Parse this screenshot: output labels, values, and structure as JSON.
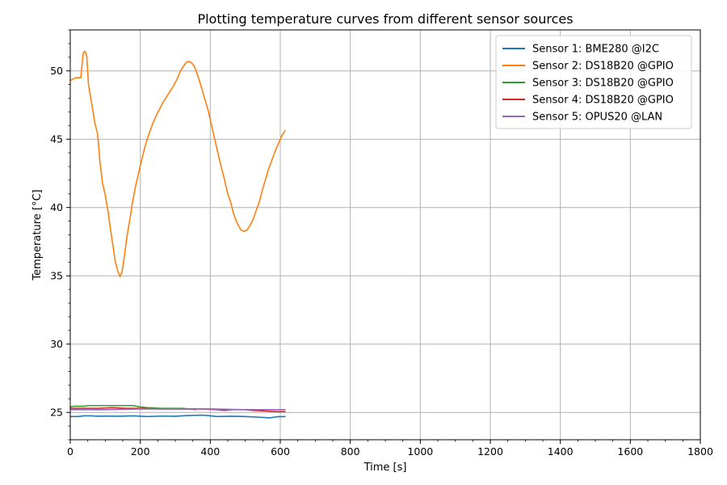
{
  "chart_data": {
    "type": "line",
    "title": "Plotting temperature curves from different sensor sources",
    "xlabel": "Time [s]",
    "ylabel": "Temperature [°C]",
    "xlim": [
      0,
      1800
    ],
    "ylim": [
      23,
      53
    ],
    "xticks": [
      0,
      200,
      400,
      600,
      800,
      1000,
      1200,
      1400,
      1600,
      1800
    ],
    "yticks": [
      25,
      30,
      35,
      40,
      45,
      50
    ],
    "grid": true,
    "legend_position": "top-right",
    "series": [
      {
        "name": "Sensor 1: BME280 @I2C",
        "color": "#1f77b4",
        "points": [
          [
            0,
            24.7
          ],
          [
            20,
            24.7
          ],
          [
            40,
            24.75
          ],
          [
            60,
            24.75
          ],
          [
            80,
            24.72
          ],
          [
            100,
            24.73
          ],
          [
            140,
            24.72
          ],
          [
            180,
            24.75
          ],
          [
            220,
            24.7
          ],
          [
            260,
            24.73
          ],
          [
            300,
            24.72
          ],
          [
            340,
            24.78
          ],
          [
            380,
            24.8
          ],
          [
            420,
            24.7
          ],
          [
            460,
            24.72
          ],
          [
            500,
            24.7
          ],
          [
            540,
            24.65
          ],
          [
            570,
            24.6
          ],
          [
            590,
            24.68
          ],
          [
            615,
            24.7
          ]
        ]
      },
      {
        "name": "Sensor 2: DS18B20 @GPIO",
        "color": "#ff7f0e",
        "points": [
          [
            0,
            49.3
          ],
          [
            15,
            49.5
          ],
          [
            30,
            49.5
          ],
          [
            37,
            51.3
          ],
          [
            42,
            51.45
          ],
          [
            47,
            51.1
          ],
          [
            52,
            49.0
          ],
          [
            62,
            47.5
          ],
          [
            70,
            46.2
          ],
          [
            78,
            45.4
          ],
          [
            85,
            43.3
          ],
          [
            92,
            41.8
          ],
          [
            100,
            40.9
          ],
          [
            108,
            39.7
          ],
          [
            115,
            38.4
          ],
          [
            122,
            37.2
          ],
          [
            128,
            36.1
          ],
          [
            135,
            35.4
          ],
          [
            142,
            34.95
          ],
          [
            148,
            35.3
          ],
          [
            155,
            36.5
          ],
          [
            162,
            37.9
          ],
          [
            170,
            39.1
          ],
          [
            178,
            40.4
          ],
          [
            186,
            41.5
          ],
          [
            195,
            42.5
          ],
          [
            205,
            43.6
          ],
          [
            215,
            44.6
          ],
          [
            225,
            45.4
          ],
          [
            235,
            46.1
          ],
          [
            245,
            46.7
          ],
          [
            255,
            47.2
          ],
          [
            265,
            47.7
          ],
          [
            275,
            48.1
          ],
          [
            285,
            48.5
          ],
          [
            295,
            48.9
          ],
          [
            305,
            49.4
          ],
          [
            315,
            50.0
          ],
          [
            325,
            50.4
          ],
          [
            333,
            50.65
          ],
          [
            340,
            50.7
          ],
          [
            348,
            50.55
          ],
          [
            355,
            50.3
          ],
          [
            362,
            49.8
          ],
          [
            370,
            49.2
          ],
          [
            378,
            48.5
          ],
          [
            386,
            47.8
          ],
          [
            394,
            47.1
          ],
          [
            402,
            46.2
          ],
          [
            410,
            45.3
          ],
          [
            420,
            44.2
          ],
          [
            430,
            43.1
          ],
          [
            440,
            42.1
          ],
          [
            450,
            41.0
          ],
          [
            458,
            40.4
          ],
          [
            466,
            39.6
          ],
          [
            474,
            39.0
          ],
          [
            482,
            38.6
          ],
          [
            488,
            38.35
          ],
          [
            496,
            38.25
          ],
          [
            505,
            38.35
          ],
          [
            514,
            38.7
          ],
          [
            522,
            39.1
          ],
          [
            530,
            39.7
          ],
          [
            540,
            40.4
          ],
          [
            548,
            41.2
          ],
          [
            556,
            41.9
          ],
          [
            565,
            42.7
          ],
          [
            575,
            43.4
          ],
          [
            585,
            44.1
          ],
          [
            595,
            44.7
          ],
          [
            603,
            45.2
          ],
          [
            614,
            45.65
          ]
        ]
      },
      {
        "name": "Sensor 3: DS18B20 @GPIO",
        "color": "#2ca02c",
        "points": [
          [
            0,
            25.4
          ],
          [
            10,
            25.45
          ],
          [
            20,
            25.45
          ],
          [
            40,
            25.45
          ],
          [
            50,
            25.5
          ],
          [
            60,
            25.5
          ],
          [
            100,
            25.5
          ],
          [
            150,
            25.5
          ],
          [
            180,
            25.5
          ],
          [
            190,
            25.45
          ],
          [
            200,
            25.4
          ],
          [
            220,
            25.35
          ],
          [
            260,
            25.3
          ],
          [
            280,
            25.3
          ],
          [
            300,
            25.3
          ],
          [
            320,
            25.3
          ],
          [
            340,
            25.25
          ],
          [
            360,
            25.2
          ]
        ]
      },
      {
        "name": "Sensor 4: DS18B20 @GPIO",
        "color": "#d62728",
        "points": [
          [
            0,
            25.3
          ],
          [
            40,
            25.3
          ],
          [
            80,
            25.3
          ],
          [
            120,
            25.35
          ],
          [
            160,
            25.3
          ],
          [
            200,
            25.3
          ],
          [
            260,
            25.25
          ],
          [
            300,
            25.25
          ],
          [
            340,
            25.25
          ],
          [
            380,
            25.25
          ],
          [
            420,
            25.2
          ],
          [
            440,
            25.15
          ],
          [
            460,
            25.2
          ],
          [
            500,
            25.2
          ],
          [
            520,
            25.15
          ],
          [
            560,
            25.1
          ],
          [
            590,
            25.05
          ],
          [
            615,
            25.05
          ]
        ]
      },
      {
        "name": "Sensor 5: OPUS20 @LAN",
        "color": "#9467bd",
        "points": [
          [
            0,
            25.2
          ],
          [
            100,
            25.2
          ],
          [
            200,
            25.25
          ],
          [
            300,
            25.25
          ],
          [
            400,
            25.25
          ],
          [
            500,
            25.2
          ],
          [
            550,
            25.2
          ],
          [
            615,
            25.2
          ]
        ]
      }
    ]
  }
}
